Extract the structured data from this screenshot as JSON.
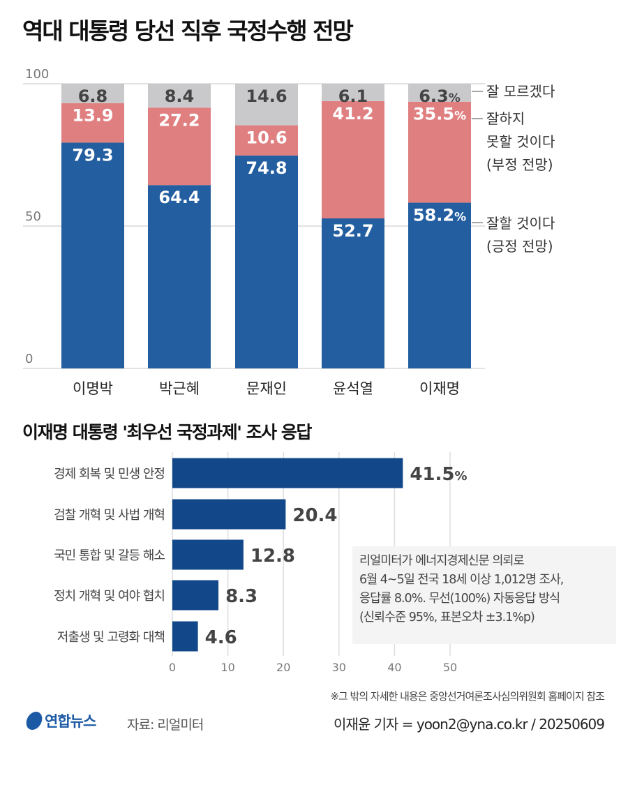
{
  "title": "역대 대통령 당선 직후 국정수행 전망",
  "colors": {
    "positive": "#235ea0",
    "negative": "#e07f80",
    "unknown": "#c9c9cb",
    "bar2": "#124789"
  },
  "chart_data": [
    {
      "type": "bar",
      "stacked": true,
      "categories": [
        "이명박",
        "박근혜",
        "문재인",
        "윤석열",
        "이재명"
      ],
      "ylim": [
        0,
        100
      ],
      "yticks": [
        "0",
        "50",
        "100"
      ],
      "grid": true,
      "series": [
        {
          "name": "잘할 것이다 (긍정 전망)",
          "values": [
            79.3,
            64.4,
            74.8,
            52.7,
            58.2
          ],
          "labels": [
            "79.3",
            "64.4",
            "74.8",
            "52.7",
            "58.2%"
          ]
        },
        {
          "name": "잘하지 못할 것이다 (부정 전망)",
          "values": [
            13.9,
            27.2,
            10.6,
            41.2,
            35.5
          ],
          "labels": [
            "13.9",
            "27.2",
            "10.6",
            "41.2",
            "35.5%"
          ]
        },
        {
          "name": "잘 모르겠다",
          "values": [
            6.8,
            8.4,
            14.6,
            6.1,
            6.3
          ],
          "labels": [
            "6.8",
            "8.4",
            "14.6",
            "6.1",
            "6.3%"
          ]
        }
      ],
      "legend": {
        "placement": "right",
        "unknown": "잘 모르겠다",
        "negative": [
          "잘하지",
          "못할 것이다",
          "(부정 전망)"
        ],
        "positive": [
          "잘할 것이다",
          "(긍정 전망)"
        ]
      }
    },
    {
      "type": "bar",
      "orientation": "horizontal",
      "title": "이재명 대통령 '최우선 국정과제' 조사 응답",
      "categories": [
        "경제 회복 및 민생 안정",
        "검찰 개혁 및 사법 개혁",
        "국민 통합 및 갈등 해소",
        "정치 개혁 및 여야 협치",
        "저출생 및 고령화 대책"
      ],
      "values": [
        41.5,
        20.4,
        12.8,
        8.3,
        4.6
      ],
      "labels": [
        "41.5%",
        "20.4",
        "12.8",
        "8.3",
        "4.6"
      ],
      "xlim": [
        0,
        50
      ],
      "xticks": [
        "0",
        "10",
        "20",
        "30",
        "40",
        "50"
      ],
      "grid": true
    }
  ],
  "note": [
    "리얼미터가 에너지경제신문 의뢰로",
    "6월 4~5일 전국 18세 이상 1,012명 조사,",
    "응답률 8.0%. 무선(100%) 자동응답 방식",
    "(신뢰수준 95%, 표본오차 ±3.1%p)"
  ],
  "footnote": "※그 밖의 자세한 내용은 중앙선거여론조사심의위원회 홈페이지 참조",
  "logo": "연합뉴스",
  "source": "자료: 리얼미터",
  "byline": "이재윤 기자 = yoon2@yna.co.kr / 20250609"
}
